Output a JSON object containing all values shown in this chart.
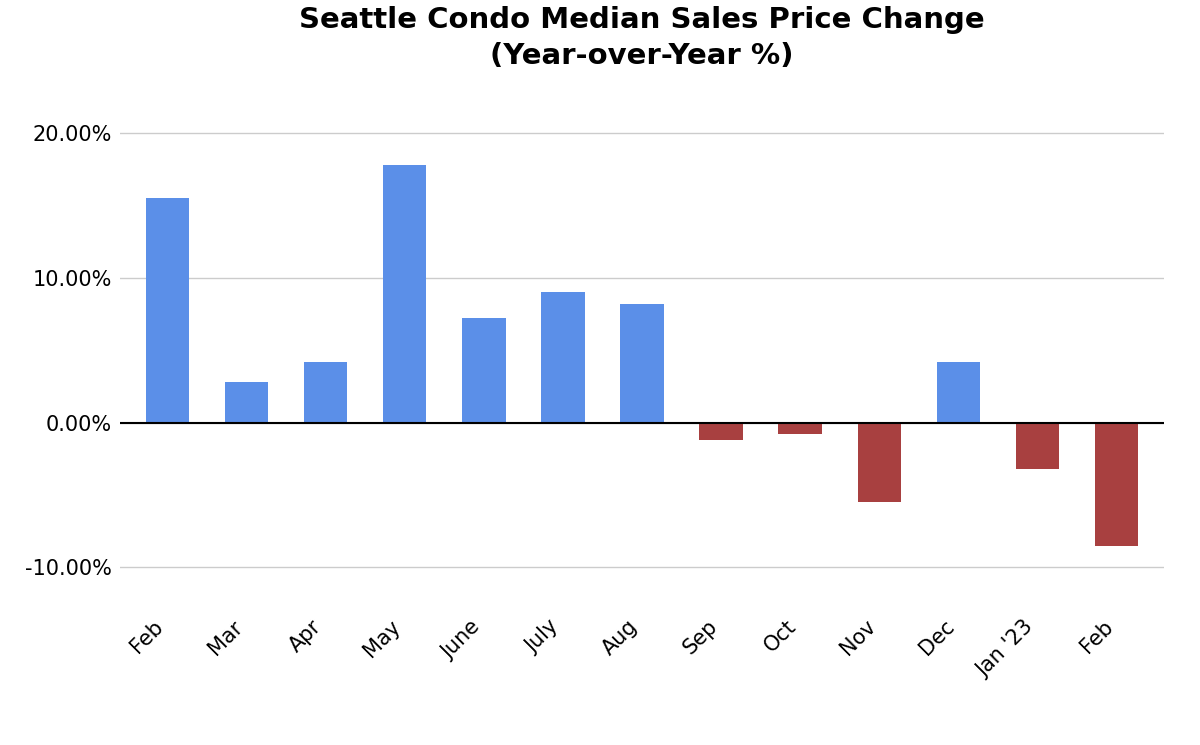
{
  "categories": [
    "Feb",
    "Mar",
    "Apr",
    "May",
    "June",
    "July",
    "Aug",
    "Sep",
    "Oct",
    "Nov",
    "Dec",
    "Jan '23",
    "Feb"
  ],
  "values": [
    15.5,
    2.8,
    4.2,
    17.8,
    7.2,
    9.0,
    8.2,
    -1.2,
    -0.8,
    -5.5,
    4.2,
    -3.2,
    -8.5
  ],
  "positive_color": "#5B8FE8",
  "negative_color": "#A84040",
  "title_line1": "Seattle Condo Median Sales Price Change",
  "title_line2": "(Year-over-Year %)",
  "ylim": [
    -13,
    23
  ],
  "yticks": [
    -10,
    0,
    10,
    20
  ],
  "background_color": "#ffffff",
  "grid_color": "#cccccc",
  "title_fontsize": 21,
  "tick_fontsize": 15,
  "bar_width": 0.55
}
